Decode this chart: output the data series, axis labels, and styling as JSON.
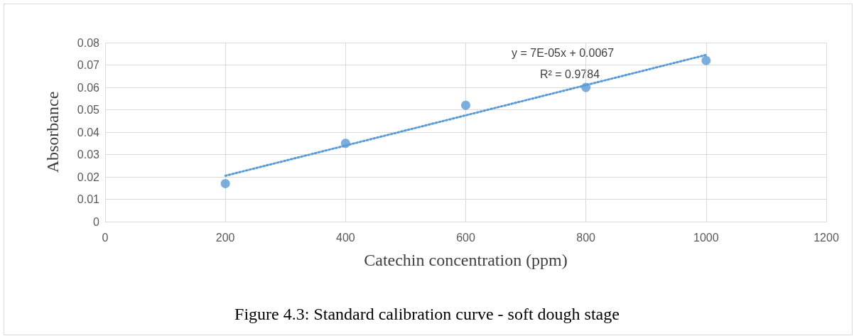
{
  "chart_data": {
    "type": "scatter",
    "title": "Figure 4.3: Standard calibration curve - soft dough stage",
    "xlabel": "Catechin concentration (ppm)",
    "ylabel": "Absorbance",
    "annotations": [
      "y = 7E-05x + 0.0067",
      "R² = 0.9784"
    ],
    "series": [
      {
        "color": "#5b9bd5",
        "x": [
          200,
          400,
          600,
          800,
          1000
        ],
        "values": [
          0.017,
          0.035,
          0.052,
          0.06,
          0.072
        ],
        "marker": "circle"
      },
      {
        "type": "line",
        "color": "#5b9bd5",
        "x": [
          200,
          1000
        ],
        "values": [
          0.0205,
          0.0745
        ],
        "line_style": "dotted",
        "marker": "none"
      }
    ],
    "xlim": [
      0,
      1200
    ],
    "xticks": [
      0,
      200,
      400,
      600,
      800,
      1000,
      1200
    ],
    "ylim": [
      0,
      0.08
    ],
    "yticks": [
      0,
      0.01,
      0.02,
      0.03,
      0.04,
      0.05,
      0.06,
      0.07,
      0.08
    ],
    "grid": true
  }
}
